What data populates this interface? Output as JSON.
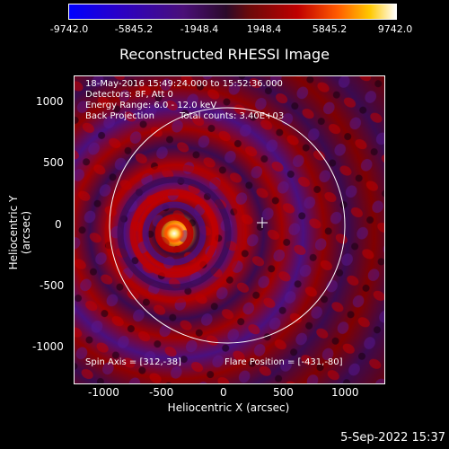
{
  "colorbar": {
    "ticks": [
      "-9742.0",
      "-5845.2",
      "-1948.4",
      "1948.4",
      "5845.2",
      "9742.0"
    ]
  },
  "title": "Reconstructed RHESSI Image",
  "info": {
    "time_range": "18-May-2016 15:49:24.000 to 15:52:36.000",
    "detectors": "Detectors: 8F, Att 0",
    "energy": "Energy Range: 6.0 - 12.0 keV",
    "method": "Back Projection",
    "counts": "Total counts: 3.40E+03",
    "spin_axis": "Spin Axis = [312,-38]",
    "flare_position": "Flare Position = [-431,-80]"
  },
  "axes": {
    "xlabel": "Heliocentric X (arcsec)",
    "ylabel": "Heliocentric Y (arcsec)",
    "xticks": [
      "-1000",
      "-500",
      "0",
      "500",
      "1000"
    ],
    "yticks": [
      "1000",
      "500",
      "0",
      "-500",
      "-1000"
    ]
  },
  "footer_date": "5-Sep-2022 15:37"
}
